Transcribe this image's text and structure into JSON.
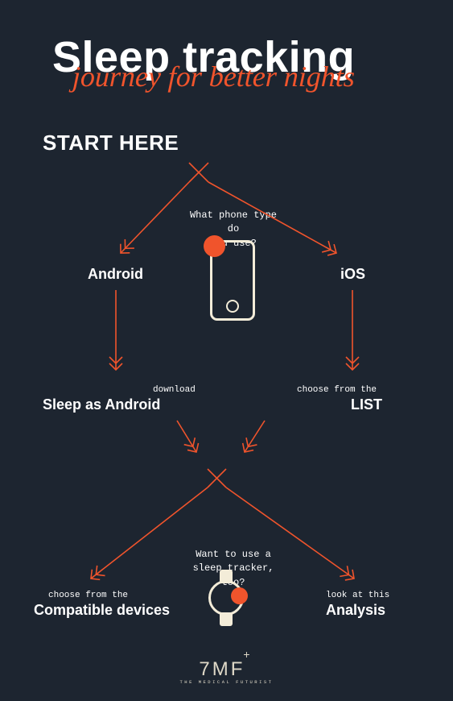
{
  "type": "flowchart",
  "background_color": "#1d2530",
  "accent_color": "#f0542c",
  "line_color": "#f0542c",
  "icon_stroke_color": "#f3ecd8",
  "text_color": "#ffffff",
  "title": {
    "main": "Sleep tracking",
    "sub": "journey for better nights"
  },
  "start_label": "START HERE",
  "question1": "What phone type do\nyou use?",
  "branch_left1": {
    "label": "Android"
  },
  "branch_right1": {
    "label": "iOS"
  },
  "result_left1": {
    "pre": "download",
    "main": "Sleep as Android"
  },
  "result_right1": {
    "pre": "choose from the",
    "main": "LIST"
  },
  "question2": "Want to use a\nsleep tracker, too?",
  "result_left2": {
    "pre": "choose from the",
    "main": "Compatible devices"
  },
  "result_right2": {
    "pre": "look at this",
    "main": "Analysis"
  },
  "footer": {
    "mark": "7MF",
    "sub": "THE MEDICAL FUTURIST"
  },
  "arrows": {
    "stroke_width": 1.6,
    "head_style": "double-chevron"
  }
}
